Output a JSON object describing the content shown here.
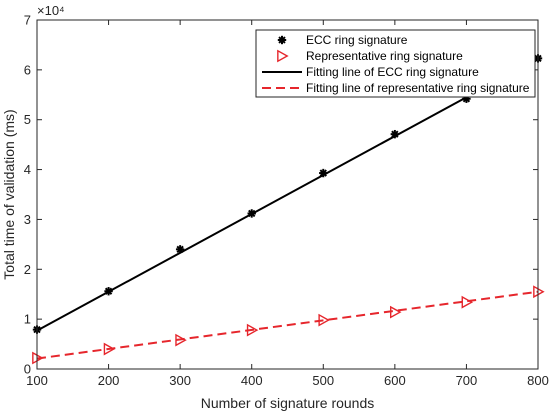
{
  "chart_data": {
    "type": "scatter",
    "title": "",
    "xlabel": "Number of signature rounds",
    "ylabel": "Total time of validation (ms)",
    "xlim": [
      100,
      800
    ],
    "ylim": [
      0,
      70000
    ],
    "x_ticks": [
      100,
      200,
      300,
      400,
      500,
      600,
      700,
      800
    ],
    "y_ticks": [
      0,
      10000,
      20000,
      30000,
      40000,
      50000,
      60000,
      70000
    ],
    "y_tick_labels": [
      "0",
      "1",
      "2",
      "3",
      "4",
      "5",
      "6",
      "7"
    ],
    "y_exponent_label": "×10⁴",
    "grid": false,
    "legend_position": "top-right",
    "series": [
      {
        "name": "ECC ring signature",
        "style": "markers",
        "marker": "asterisk",
        "color": "#000000",
        "x": [
          100,
          200,
          300,
          400,
          500,
          600,
          700,
          800
        ],
        "y": [
          7900,
          15600,
          24000,
          31200,
          39300,
          47100,
          54200,
          62300
        ]
      },
      {
        "name": "Representative ring signature",
        "style": "markers",
        "marker": "triangle-right-open",
        "color": "#e6262c",
        "x": [
          100,
          200,
          300,
          400,
          500,
          600,
          700,
          800
        ],
        "y": [
          2200,
          4000,
          5800,
          7800,
          9800,
          11400,
          13400,
          15500
        ]
      },
      {
        "name": "Fitting line of ECC ring signature",
        "style": "solid-line",
        "color": "#000000",
        "x": [
          100,
          800
        ],
        "y": [
          7700,
          62300
        ]
      },
      {
        "name": "Fitting line of representative ring signature",
        "style": "dashed-line",
        "color": "#e6262c",
        "x": [
          100,
          800
        ],
        "y": [
          2100,
          15500
        ]
      }
    ]
  }
}
